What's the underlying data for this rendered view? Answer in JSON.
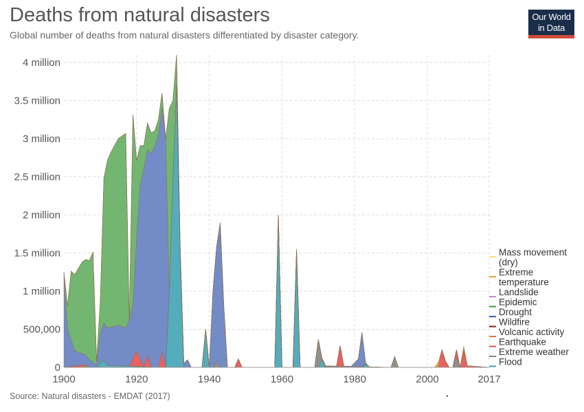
{
  "header": {
    "title": "Deaths from natural disasters",
    "subtitle": "Global number of deaths from natural disasters differentiated by disaster category."
  },
  "logo": {
    "line1": "Our World",
    "line2": "in Data",
    "bg_color": "#1a2e4a",
    "accent_color": "#d04a3a"
  },
  "footer": {
    "source": "Source: Natural disasters - EMDAT (2017)",
    "mark": "•"
  },
  "chart_data": {
    "type": "area",
    "stacked": true,
    "title": "Deaths from natural disasters",
    "xlabel": "",
    "ylabel": "",
    "xlim": [
      1900,
      2017
    ],
    "ylim": [
      0,
      4100000
    ],
    "grid": true,
    "legend_position": "right",
    "x_ticks": [
      {
        "value": 1900,
        "label": "1900"
      },
      {
        "value": 1920,
        "label": "1920"
      },
      {
        "value": 1940,
        "label": "1940"
      },
      {
        "value": 1960,
        "label": "1960"
      },
      {
        "value": 1980,
        "label": "1980"
      },
      {
        "value": 2000,
        "label": "2000"
      },
      {
        "value": 2017,
        "label": "2017"
      }
    ],
    "y_ticks": [
      {
        "value": 0,
        "label": "0"
      },
      {
        "value": 500000,
        "label": "500,000"
      },
      {
        "value": 1000000,
        "label": "1 million"
      },
      {
        "value": 1500000,
        "label": "1.5 million"
      },
      {
        "value": 2000000,
        "label": "2 million"
      },
      {
        "value": 2500000,
        "label": "2.5 million"
      },
      {
        "value": 3000000,
        "label": "3 million"
      },
      {
        "value": 3500000,
        "label": "3.5 million"
      },
      {
        "value": 4000000,
        "label": "4 million"
      }
    ],
    "legend": [
      {
        "name": "Mass movement (dry)",
        "lines": [
          "Mass movement",
          "(dry)"
        ],
        "color": "#f5e07a"
      },
      {
        "name": "Extreme temperature",
        "lines": [
          "Extreme",
          "temperature"
        ],
        "color": "#e8a33a"
      },
      {
        "name": "Landslide",
        "lines": [
          "Landslide"
        ],
        "color": "#c98ac9"
      },
      {
        "name": "Epidemic",
        "lines": [
          "Epidemic"
        ],
        "color": "#3c9a3c"
      },
      {
        "name": "Drought",
        "lines": [
          "Drought"
        ],
        "color": "#3b5da7"
      },
      {
        "name": "Wildfire",
        "lines": [
          "Wildfire"
        ],
        "color": "#8b1a1a"
      },
      {
        "name": "Volcanic activity",
        "lines": [
          "Volcanic activity"
        ],
        "color": "#e8733a"
      },
      {
        "name": "Earthquake",
        "lines": [
          "Earthquake"
        ],
        "color": "#e84a4a"
      },
      {
        "name": "Extreme weather",
        "lines": [
          "Extreme weather"
        ],
        "color": "#808080"
      },
      {
        "name": "Flood",
        "lines": [
          "Flood"
        ],
        "color": "#3a9fb0"
      }
    ],
    "series": [
      {
        "name": "Flood",
        "color": "#4aa9b8",
        "points": [
          [
            1900,
            0
          ],
          [
            1909,
            0
          ],
          [
            1910,
            50000
          ],
          [
            1911,
            100000
          ],
          [
            1912,
            30000
          ],
          [
            1926,
            0
          ],
          [
            1928,
            0
          ],
          [
            1929,
            1000000
          ],
          [
            1930,
            2500000
          ],
          [
            1931,
            3700000
          ],
          [
            1932,
            1500000
          ],
          [
            1933,
            0
          ],
          [
            1938,
            0
          ],
          [
            1939,
            500000
          ],
          [
            1940,
            0
          ],
          [
            1958,
            0
          ],
          [
            1959,
            2000000
          ],
          [
            1960,
            0
          ],
          [
            1963,
            0
          ],
          [
            1964,
            1550000
          ],
          [
            1965,
            0
          ],
          [
            1970,
            0
          ],
          [
            1971,
            100000
          ],
          [
            1972,
            0
          ],
          [
            1982,
            0
          ],
          [
            1983,
            50000
          ],
          [
            1984,
            0
          ],
          [
            2017,
            0
          ]
        ]
      },
      {
        "name": "Extreme weather",
        "color": "#8a8a8a",
        "points": [
          [
            1900,
            0
          ],
          [
            1905,
            0
          ],
          [
            1906,
            30000
          ],
          [
            1907,
            0
          ],
          [
            1941,
            0
          ],
          [
            1942,
            80000
          ],
          [
            1943,
            0
          ],
          [
            1969,
            0
          ],
          [
            1970,
            350000
          ],
          [
            1971,
            20000
          ],
          [
            1990,
            0
          ],
          [
            1991,
            140000
          ],
          [
            1992,
            0
          ],
          [
            2007,
            0
          ],
          [
            2008,
            140000
          ],
          [
            2009,
            0
          ],
          [
            2017,
            0
          ]
        ]
      },
      {
        "name": "Earthquake",
        "color": "#e85a5a",
        "points": [
          [
            1900,
            0
          ],
          [
            1905,
            30000
          ],
          [
            1906,
            10000
          ],
          [
            1907,
            0
          ],
          [
            1918,
            0
          ],
          [
            1920,
            200000
          ],
          [
            1921,
            100000
          ],
          [
            1922,
            0
          ],
          [
            1923,
            150000
          ],
          [
            1924,
            0
          ],
          [
            1926,
            0
          ],
          [
            1927,
            200000
          ],
          [
            1928,
            0
          ],
          [
            1931,
            0
          ],
          [
            1932,
            70000
          ],
          [
            1933,
            0
          ],
          [
            1947,
            0
          ],
          [
            1948,
            110000
          ],
          [
            1949,
            0
          ],
          [
            1975,
            0
          ],
          [
            1976,
            270000
          ],
          [
            1977,
            0
          ],
          [
            2003,
            0
          ],
          [
            2004,
            230000
          ],
          [
            2005,
            80000
          ],
          [
            2006,
            0
          ],
          [
            2007,
            0
          ],
          [
            2008,
            90000
          ],
          [
            2009,
            0
          ],
          [
            2010,
            230000
          ],
          [
            2011,
            20000
          ],
          [
            2017,
            0
          ]
        ]
      },
      {
        "name": "Drought",
        "color": "#6b86c4",
        "points": [
          [
            1900,
            1200000
          ],
          [
            1901,
            500000
          ],
          [
            1903,
            200000
          ],
          [
            1905,
            150000
          ],
          [
            1907,
            100000
          ],
          [
            1909,
            30000
          ],
          [
            1910,
            400000
          ],
          [
            1911,
            480000
          ],
          [
            1913,
            500000
          ],
          [
            1915,
            530000
          ],
          [
            1917,
            500000
          ],
          [
            1919,
            700000
          ],
          [
            1920,
            1500000
          ],
          [
            1921,
            2300000
          ],
          [
            1922,
            2600000
          ],
          [
            1923,
            2700000
          ],
          [
            1925,
            2900000
          ],
          [
            1927,
            3200000
          ],
          [
            1928,
            3000000
          ],
          [
            1929,
            0
          ],
          [
            1930,
            0
          ],
          [
            1931,
            0
          ],
          [
            1932,
            0
          ],
          [
            1934,
            100000
          ],
          [
            1935,
            0
          ],
          [
            1940,
            0
          ],
          [
            1941,
            1000000
          ],
          [
            1942,
            1500000
          ],
          [
            1943,
            1900000
          ],
          [
            1944,
            800000
          ],
          [
            1945,
            0
          ],
          [
            1965,
            0
          ],
          [
            1966,
            0
          ],
          [
            1979,
            0
          ],
          [
            1981,
            100000
          ],
          [
            1982,
            450000
          ],
          [
            1983,
            0
          ],
          [
            2017,
            0
          ]
        ]
      },
      {
        "name": "Epidemic",
        "color": "#6ab26a",
        "points": [
          [
            1900,
            50000
          ],
          [
            1901,
            300000
          ],
          [
            1902,
            900000
          ],
          [
            1903,
            1000000
          ],
          [
            1905,
            1200000
          ],
          [
            1907,
            1300000
          ],
          [
            1908,
            1450000
          ],
          [
            1909,
            50000
          ],
          [
            1910,
            400000
          ],
          [
            1911,
            1900000
          ],
          [
            1912,
            2200000
          ],
          [
            1913,
            2300000
          ],
          [
            1915,
            2450000
          ],
          [
            1917,
            2550000
          ],
          [
            1918,
            0
          ],
          [
            1919,
            2500000
          ],
          [
            1920,
            1000000
          ],
          [
            1921,
            500000
          ],
          [
            1922,
            300000
          ],
          [
            1923,
            350000
          ],
          [
            1925,
            200000
          ],
          [
            1926,
            200000
          ],
          [
            1927,
            200000
          ],
          [
            1928,
            0
          ],
          [
            1929,
            2400000
          ],
          [
            1930,
            1000000
          ],
          [
            1931,
            400000
          ],
          [
            1932,
            0
          ],
          [
            2017,
            0
          ]
        ]
      },
      {
        "name": "Wildfire",
        "color": "#a0302a",
        "points": [
          [
            1900,
            0
          ],
          [
            1969,
            0
          ],
          [
            1970,
            20000
          ],
          [
            1971,
            0
          ],
          [
            2017,
            0
          ]
        ]
      },
      {
        "name": "Extreme temperature",
        "color": "#e8a33a",
        "points": [
          [
            1900,
            0
          ],
          [
            2002,
            0
          ],
          [
            2003,
            70000
          ],
          [
            2004,
            0
          ],
          [
            2009,
            0
          ],
          [
            2010,
            50000
          ],
          [
            2011,
            0
          ],
          [
            2017,
            0
          ]
        ]
      }
    ]
  }
}
